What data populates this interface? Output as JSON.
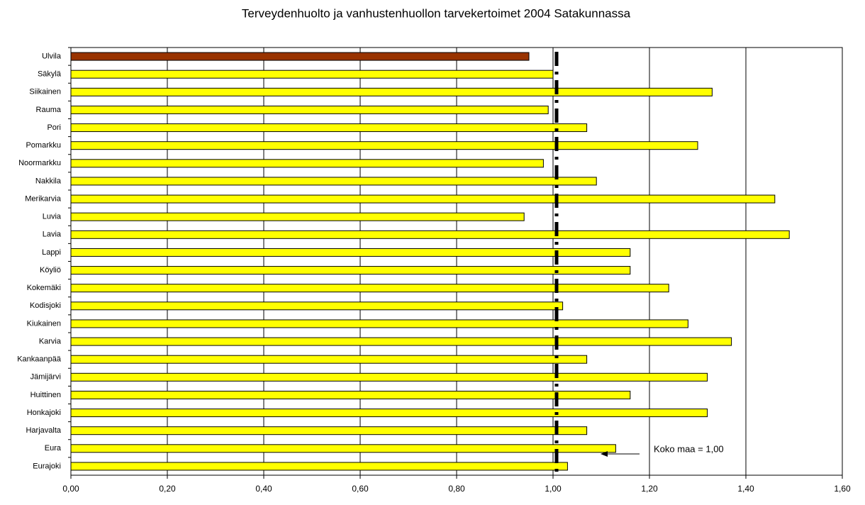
{
  "chart_data": {
    "type": "barh",
    "title": "Terveydenhuolto ja vanhustenhuollon tarvekertoimet 2004 Satakunnassa",
    "categories": [
      "Ulvila",
      "Säkylä",
      "Siikainen",
      "Rauma",
      "Pori",
      "Pomarkku",
      "Noormarkku",
      "Nakkila",
      "Merikarvia",
      "Luvia",
      "Lavia",
      "Lappi",
      "Köyliö",
      "Kokemäki",
      "Kodisjoki",
      "Kiukainen",
      "Karvia",
      "Kankaanpää",
      "Jämijärvi",
      "Huittinen",
      "Honkajoki",
      "Harjavalta",
      "Eura",
      "Eurajoki"
    ],
    "values": [
      0.95,
      1.0,
      1.33,
      0.99,
      1.07,
      1.3,
      0.98,
      1.09,
      1.46,
      0.94,
      1.49,
      1.16,
      1.16,
      1.24,
      1.02,
      1.28,
      1.37,
      1.07,
      1.32,
      1.16,
      1.32,
      1.07,
      1.13,
      1.03
    ],
    "colors": [
      "#993300",
      "#ffff00",
      "#ffff00",
      "#ffff00",
      "#ffff00",
      "#ffff00",
      "#ffff00",
      "#ffff00",
      "#ffff00",
      "#ffff00",
      "#ffff00",
      "#ffff00",
      "#ffff00",
      "#ffff00",
      "#ffff00",
      "#ffff00",
      "#ffff00",
      "#ffff00",
      "#ffff00",
      "#ffff00",
      "#ffff00",
      "#ffff00",
      "#ffff00",
      "#ffff00"
    ],
    "xlim": [
      0,
      1.6
    ],
    "xticks": [
      {
        "value": 0,
        "label": "0,00"
      },
      {
        "value": 0.2,
        "label": "0,20"
      },
      {
        "value": 0.4,
        "label": "0,40"
      },
      {
        "value": 0.6,
        "label": "0,60"
      },
      {
        "value": 0.8,
        "label": "0,80"
      },
      {
        "value": 1.0,
        "label": "1,00"
      },
      {
        "value": 1.2,
        "label": "1,20"
      },
      {
        "value": 1.4,
        "label": "1,40"
      },
      {
        "value": 1.6,
        "label": "1,60"
      }
    ],
    "grid": true,
    "reference_value": 1,
    "annotation": "Koko maa = 1,00"
  }
}
